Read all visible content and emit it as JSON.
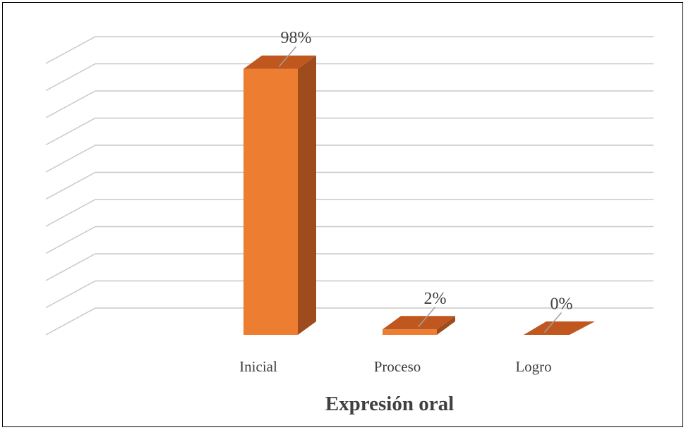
{
  "chart_data": {
    "type": "bar",
    "style": "3d-column",
    "categories": [
      "Inicial",
      "Proceso",
      "Logro"
    ],
    "values": [
      98,
      2,
      0
    ],
    "data_labels": [
      "98%",
      "2%",
      "0%"
    ],
    "xlabel": "Expresión oral",
    "ylabel": "",
    "ylim": [
      0,
      100
    ],
    "grid": true,
    "legend": "none",
    "colors": {
      "front": "#ED7D31",
      "side": "#9E4B1E",
      "top": "#C0571F",
      "grid": "#C8C8C8",
      "text": "#404040"
    }
  }
}
